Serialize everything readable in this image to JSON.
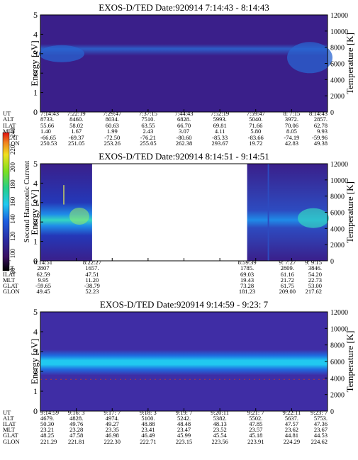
{
  "chart_data": [
    {
      "type": "heatmap",
      "title": "EXOS-D/TED   Date:920914   7:14:43 - 8:14:43",
      "ylabel": "Energy [eV]",
      "y2label": "Temperature [K]",
      "ylim": [
        0,
        5
      ],
      "y_ticks": [
        "0",
        "1",
        "2",
        "3",
        "4",
        "5"
      ],
      "y2lim": [
        0,
        12000
      ],
      "y2_ticks": [
        "0",
        "2000",
        "4000",
        "6000",
        "8000",
        "10000",
        "12000"
      ],
      "band_center_ev": 3.0,
      "gaps": [],
      "table": {
        "row_labels": [
          "UT",
          "ALT",
          "ILAT",
          "MLT",
          "GLAT",
          "GLON"
        ],
        "columns": [
          [
            "7:14:43",
            "8733.",
            "55.66",
            "1.40",
            "-66.65",
            "250.53"
          ],
          [
            "7:22:19",
            "8460.",
            "58.02",
            "1.67",
            "-69.37",
            "251.05"
          ],
          [
            "7:29:47",
            "8034.",
            "60.63",
            "1.99",
            "-72.50",
            "253.26"
          ],
          [
            "7:37:15",
            "7510.",
            "63.55",
            "2.43",
            "-76.21",
            "255.05"
          ],
          [
            "7:44:43",
            "6828.",
            "66.70",
            "3.07",
            "-80.60",
            "262.38"
          ],
          [
            "7:52:19",
            "5993.",
            "69.81",
            "4.11",
            "-85.33",
            "293.67"
          ],
          [
            "7:59:47",
            "5040.",
            "71.66",
            "5.80",
            "-83.66",
            "19.72"
          ],
          [
            "8: 7:15",
            "3972.",
            "70.06",
            "8.05",
            "-74.19",
            "42.83"
          ],
          [
            "8:14:43",
            "2857.",
            "62.78",
            "9.93",
            "-59.96",
            "49.38"
          ]
        ]
      }
    },
    {
      "type": "heatmap",
      "title": "EXOS-D/TED   Date:920914   8:14:51 - 9:14:51",
      "ylabel": "Energy [eV]",
      "y2label": "Temperature [K]",
      "ylim": [
        0,
        5
      ],
      "y_ticks": [
        "0",
        "1",
        "2",
        "3",
        "4",
        "5"
      ],
      "y2lim": [
        0,
        12000
      ],
      "y2_ticks": [
        "0",
        "2000",
        "4000",
        "6000",
        "8000",
        "10000",
        "12000"
      ],
      "band_center_ev": 2.2,
      "gaps": [
        [
          0.18,
          0.72
        ]
      ],
      "colorbar": {
        "label": "Second Harmonic Current",
        "range": [
          80,
          240
        ],
        "ticks": [
          "80",
          "100",
          "120",
          "140",
          "160",
          "180",
          "200",
          "220",
          "240"
        ]
      },
      "table": {
        "row_labels": [
          "UT",
          "ALT",
          "ILAT",
          "MLT",
          "GLAT",
          "GLON"
        ],
        "columns": [
          [
            "8:14:51",
            "2807",
            "62.59",
            "9.95",
            "-59.65",
            "49.45"
          ],
          [
            "8:22:27",
            "1657.",
            "47.51",
            "11.20",
            "-38.79",
            "52.23"
          ],
          [
            "8:59:39",
            "1785.",
            "69.03",
            "19.43",
            "73.28",
            "181.23"
          ],
          [
            "9: 7:27",
            "2809.",
            "61.16",
            "21.72",
            "61.75",
            "209.00"
          ],
          [
            "9: 9:15",
            "3846.",
            "54.20",
            "22.73",
            "53.00",
            "217.62"
          ]
        ]
      }
    },
    {
      "type": "heatmap",
      "title": "EXOS-D/TED   Date:920914   9:14:59 - 9:23: 7",
      "ylabel": "Energy [eV]",
      "y2label": "Temperature [K]",
      "ylim": [
        0,
        5
      ],
      "y_ticks": [
        "0",
        "1",
        "2",
        "3",
        "4",
        "5"
      ],
      "y2lim": [
        0,
        12000
      ],
      "y2_ticks": [
        "0",
        "2000",
        "4000",
        "6000",
        "8000",
        "10000",
        "12000"
      ],
      "band_center_ev": 2.3,
      "gaps": [],
      "table": {
        "row_labels": [
          "UT",
          "ALT",
          "ILAT",
          "MLT",
          "GLAT",
          "GLON"
        ],
        "columns": [
          [
            "9:14:59",
            "4679.",
            "50.30",
            "23.21",
            "48.25",
            "221.29"
          ],
          [
            "9:16: 3",
            "4828.",
            "49.76",
            "23.28",
            "47.58",
            "221.81"
          ],
          [
            "9:17: 7",
            "4974.",
            "49.27",
            "23.35",
            "46.98",
            "222.30"
          ],
          [
            "9:18: 3",
            "5100.",
            "48.88",
            "23.41",
            "46.49",
            "222.71"
          ],
          [
            "9:19: 7",
            "5242.",
            "48.48",
            "23.47",
            "45.99",
            "223.15"
          ],
          [
            "9:20:11",
            "5382.",
            "48.13",
            "23.52",
            "45.54",
            "223.56"
          ],
          [
            "9:21: 7",
            "5502.",
            "47.85",
            "23.57",
            "45.18",
            "223.91"
          ],
          [
            "9:22:11",
            "5637.",
            "47.57",
            "23.62",
            "44.81",
            "224.29"
          ],
          [
            "9:23: 7",
            "5753.",
            "47.36",
            "23.67",
            "44.53",
            "224.62"
          ]
        ]
      }
    }
  ]
}
